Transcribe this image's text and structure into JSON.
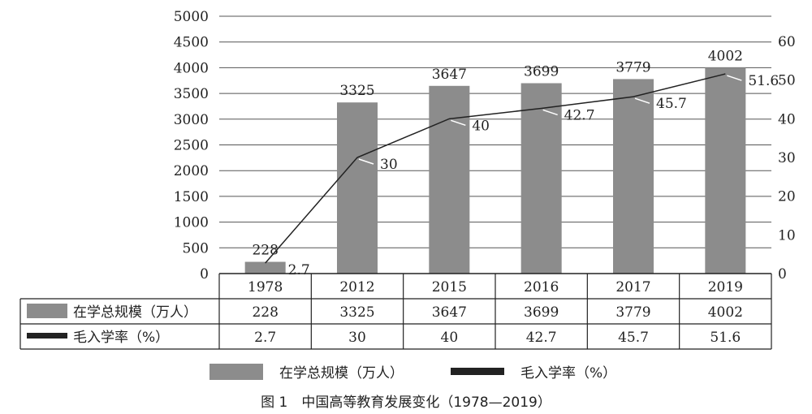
{
  "chart_data": {
    "type": "bar+line",
    "categories": [
      "1978",
      "2012",
      "2015",
      "2016",
      "2017",
      "2019"
    ],
    "series": [
      {
        "name": "在学总规模（万人）",
        "type": "bar",
        "axis": "left",
        "values": [
          228,
          3325,
          3647,
          3699,
          3779,
          4002
        ],
        "color": "#8c8c8c"
      },
      {
        "name": "毛入学率（%）",
        "type": "line",
        "axis": "right",
        "values": [
          2.7,
          30,
          40,
          42.7,
          45.7,
          51.6
        ],
        "color": "#222222"
      }
    ],
    "data_labels": {
      "bar": [
        "228",
        "3325",
        "3647",
        "3699",
        "3779",
        "4002"
      ],
      "line": [
        "2.7",
        "30",
        "40",
        "42.7",
        "45.7",
        "51.6"
      ]
    },
    "left_axis": {
      "ylim": [
        0,
        5000
      ],
      "ticks": [
        "0",
        "500",
        "1000",
        "1500",
        "2000",
        "2500",
        "3000",
        "3500",
        "4000",
        "4500",
        "5000"
      ]
    },
    "right_axis": {
      "ylim": [
        0,
        60
      ],
      "ticks": [
        "0",
        "10",
        "20",
        "30",
        "40",
        "50",
        "60"
      ]
    },
    "grid": true,
    "data_table": true,
    "legend_position": "bottom",
    "caption": "图 1　中国高等教育发展变化（1978—2019）"
  }
}
